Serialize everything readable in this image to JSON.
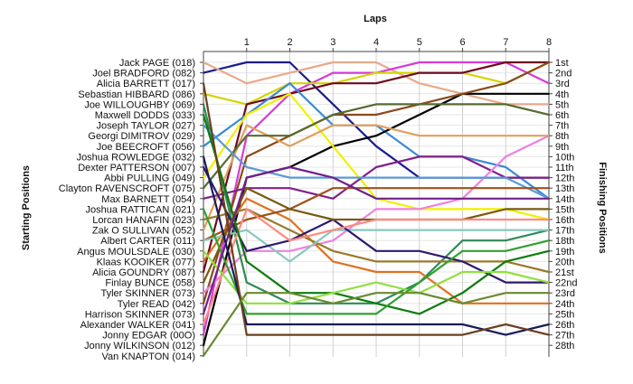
{
  "chart_data": {
    "type": "line",
    "title": "",
    "xlabel": "Laps",
    "ylabel_left": "Starting Positions",
    "ylabel_right": "Finishing Positions",
    "x": [
      0,
      1,
      2,
      3,
      4,
      5,
      6,
      7,
      8
    ],
    "x_tick_labels": [
      "1",
      "2",
      "3",
      "4",
      "5",
      "6",
      "7",
      "8"
    ],
    "ylim": [
      1,
      28
    ],
    "grid": true,
    "drivers_by_start": [
      "Jack PAGE (018)",
      "Joel BRADFORD (082)",
      "Alicia BARRETT (017)",
      "Sebastian HIBBARD (086)",
      "Joe WILLOUGHBY (069)",
      "Maxwell DODDS (033)",
      "Joseph TAYLOR (027)",
      "Georgi DIMITROV (029)",
      "Joe BEECROFT (056)",
      "Joshua ROWLEDGE (032)",
      "Dexter PATTERSON (007)",
      "Abbi PULLING (049)",
      "Clayton RAVENSCROFT (075)",
      "Max BARNETT (054)",
      "Joshua RATTICAN (021)",
      "Lorcan HANAFIN (023)",
      "Zak O SULLIVAN (052)",
      "Albert CARTER (011)",
      "Angus MOULSDALE (030)",
      "Klaas KOOIKER (077)",
      "Alicia GOUNDRY (087)",
      "Finlay BUNCE (058)",
      "Tyler SKINNER (073)",
      "Tyler READ (042)",
      "Harrison SKINNER (073)",
      "Alexander WALKER (041)",
      "Jonny EDGAR (00O)",
      "Jonny WILKINSON (012)",
      "Van KNAPTON (014)"
    ],
    "finish_labels": [
      "1st",
      "2nd",
      "3rd",
      "4th",
      "5th",
      "6th",
      "7th",
      "8th",
      "9th",
      "10th",
      "11th",
      "12th",
      "13th",
      "14th",
      "15th",
      "16th",
      "17th",
      "18th",
      "19th",
      "20th",
      "21st",
      "22nd",
      "23rd",
      "24th",
      "25th",
      "26th",
      "27th",
      "28th"
    ],
    "series": [
      {
        "color": "#1c1c8c",
        "values": [
          2,
          1,
          1,
          5,
          9,
          12,
          12,
          12,
          12
        ]
      },
      {
        "color": "#e8a98a",
        "values": [
          1,
          3,
          2,
          1,
          1,
          3,
          4,
          5,
          5
        ]
      },
      {
        "color": "#d63bd6",
        "values": [
          27,
          8,
          4,
          2,
          2,
          1,
          1,
          1,
          3
        ]
      },
      {
        "color": "#d4d400",
        "values": [
          4,
          5,
          3,
          3,
          2,
          2,
          2,
          3,
          1
        ]
      },
      {
        "color": "#6e0a1e",
        "values": [
          21,
          5,
          4,
          3,
          3,
          2,
          2,
          1,
          1
        ]
      },
      {
        "color": "#3a8ad6",
        "values": [
          9,
          6,
          3,
          7,
          7,
          10,
          10,
          11,
          14
        ]
      },
      {
        "color": "#000000",
        "values": [
          28,
          12,
          11,
          9,
          8,
          6,
          4,
          4,
          4
        ]
      },
      {
        "color": "#8a4a1a",
        "values": [
          24,
          10,
          8,
          6,
          6,
          5,
          4,
          3,
          1
        ]
      },
      {
        "color": "#f0f000",
        "values": [
          12,
          6,
          4,
          9,
          14,
          15,
          15,
          15,
          16
        ]
      },
      {
        "color": "#80208a",
        "values": [
          14,
          13,
          13,
          14,
          11,
          10,
          10,
          12,
          12
        ]
      },
      {
        "color": "#f080e0",
        "values": [
          23,
          19,
          19,
          18,
          15,
          15,
          14,
          10,
          8
        ]
      },
      {
        "color": "#dea060",
        "values": [
          17,
          7,
          9,
          7,
          7,
          8,
          8,
          8,
          8
        ]
      },
      {
        "color": "#556b2f",
        "values": [
          13,
          8,
          8,
          6,
          5,
          5,
          5,
          5,
          6
        ]
      },
      {
        "color": "#2e8b57",
        "values": [
          5,
          22,
          24,
          24,
          24,
          22,
          18,
          18,
          17
        ]
      },
      {
        "color": "#e07020",
        "values": [
          20,
          14,
          16,
          20,
          21,
          21,
          24,
          24,
          24
        ]
      },
      {
        "color": "#5a9ad6",
        "values": [
          7,
          11,
          12,
          12,
          12,
          12,
          12,
          12,
          14
        ]
      },
      {
        "color": "#9a7a2a",
        "values": [
          16,
          15,
          17,
          19,
          20,
          20,
          20,
          20,
          21
        ]
      },
      {
        "color": "#a0501a",
        "values": [
          18,
          16,
          15,
          13,
          13,
          13,
          13,
          13,
          13
        ]
      },
      {
        "color": "#88c8c0",
        "values": [
          18,
          17,
          20,
          17,
          17,
          17,
          17,
          17,
          17
        ]
      },
      {
        "color": "#2e1a6e",
        "values": [
          11,
          19,
          18,
          16,
          19,
          19,
          20,
          22,
          22
        ]
      },
      {
        "color": "#7a5a10",
        "values": [
          22,
          13,
          15,
          16,
          16,
          16,
          16,
          15,
          15
        ]
      },
      {
        "color": "#ff8a80",
        "values": [
          26,
          15,
          18,
          17,
          16,
          16,
          16,
          16,
          16
        ]
      },
      {
        "color": "#0c7c0c",
        "values": [
          6,
          20,
          23,
          23,
          24,
          25,
          23,
          20,
          19
        ]
      },
      {
        "color": "#90e040",
        "values": [
          19,
          24,
          24,
          23,
          22,
          23,
          21,
          21,
          22
        ]
      },
      {
        "color": "#30a030",
        "values": [
          15,
          25,
          25,
          25,
          25,
          22,
          19,
          19,
          18
        ]
      },
      {
        "color": "#70208a",
        "values": [
          25,
          12,
          11,
          12,
          14,
          14,
          14,
          14,
          14
        ]
      },
      {
        "color": "#1a1a5a",
        "values": [
          10,
          26,
          26,
          26,
          26,
          26,
          26,
          27,
          26
        ]
      },
      {
        "color": "#6a4020",
        "values": [
          3,
          27,
          27,
          27,
          27,
          27,
          27,
          26,
          27
        ]
      },
      {
        "color": "#6a8a30",
        "values": [
          29,
          23,
          23,
          24,
          23,
          23,
          24,
          23,
          23
        ]
      }
    ]
  }
}
